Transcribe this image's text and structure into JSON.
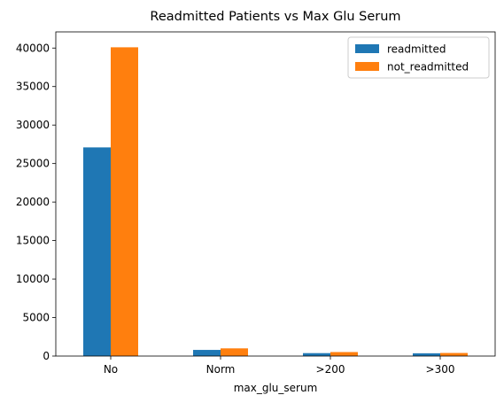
{
  "chart_data": {
    "type": "bar",
    "title": "Readmitted Patients vs Max Glu Serum",
    "xlabel": "max_glu_serum",
    "ylabel": "",
    "categories": [
      "No",
      "Norm",
      ">200",
      ">300"
    ],
    "series": [
      {
        "name": "readmitted",
        "color": "#1f77b4",
        "values": [
          27100,
          800,
          380,
          360
        ]
      },
      {
        "name": "not_readmitted",
        "color": "#ff7f0e",
        "values": [
          40100,
          1000,
          520,
          400
        ]
      }
    ],
    "ylim": [
      0,
      42100
    ],
    "yticks": [
      0,
      5000,
      10000,
      15000,
      20000,
      25000,
      30000,
      35000,
      40000
    ],
    "ytick_labels": [
      "0",
      "5000",
      "10000",
      "15000",
      "20000",
      "25000",
      "30000",
      "35000",
      "40000"
    ],
    "grid": false,
    "legend_position": "top-right"
  }
}
